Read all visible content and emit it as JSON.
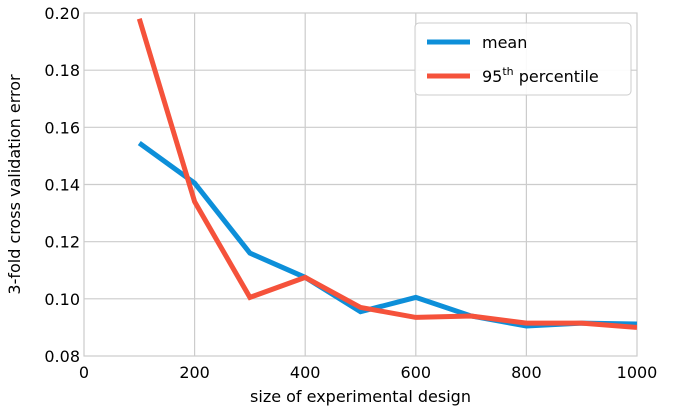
{
  "chart_data": {
    "type": "line",
    "xlabel": "size of experimental design",
    "ylabel": "3-fold cross validation error",
    "xlim": [
      0,
      1000
    ],
    "ylim": [
      0.08,
      0.2
    ],
    "xticks": [
      "0",
      "200",
      "400",
      "600",
      "800",
      "1000"
    ],
    "yticks": [
      "0.08",
      "0.10",
      "0.12",
      "0.14",
      "0.16",
      "0.18",
      "0.20"
    ],
    "grid": true,
    "legend_position": "top-right",
    "series": [
      {
        "name": "mean",
        "color": "#0d8fd9",
        "x": [
          100,
          200,
          300,
          400,
          500,
          600,
          700,
          800,
          900,
          1000
        ],
        "y": [
          0.1545,
          0.1405,
          0.116,
          0.1075,
          0.0955,
          0.1005,
          0.094,
          0.0905,
          0.0915,
          0.0912
        ]
      },
      {
        "name": "95",
        "name_superscript": "th",
        "name_suffix": " percentile",
        "color": "#f5523b",
        "x": [
          100,
          200,
          300,
          400,
          500,
          600,
          700,
          800,
          900,
          1000
        ],
        "y": [
          0.198,
          0.134,
          0.1005,
          0.1075,
          0.097,
          0.0935,
          0.094,
          0.0915,
          0.0915,
          0.09
        ]
      }
    ]
  }
}
